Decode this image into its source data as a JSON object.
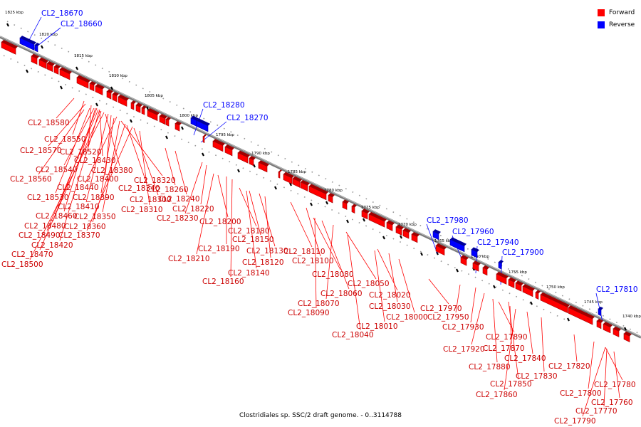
{
  "legend": {
    "forward_label": "Forward",
    "reverse_label": "Reverse",
    "forward_color": "#ff0000",
    "reverse_color": "#0000ff"
  },
  "caption": "Clostridiales sp. SSC/2 draft genome. - 0..3114788",
  "scale_ticks": [
    "1825 kbp",
    "1820 kbp",
    "1815 kbp",
    "1810 kbp",
    "1805 kbp",
    "1800 kbp",
    "1795 kbp",
    "1790 kbp",
    "1785 kbp",
    "1780 kbp",
    "1775 kbp",
    "1770 kbp",
    "1765 kbp",
    "1760 kbp",
    "1755 kbp",
    "1750 kbp",
    "1745 kbp",
    "1740 kbp"
  ],
  "reverse_genes": [
    "CL2_18670",
    "CL2_18660",
    "CL2_18280",
    "CL2_18270",
    "CL2_17980",
    "CL2_17960",
    "CL2_17940",
    "CL2_17900",
    "CL2_17810"
  ],
  "forward_genes": [
    "CL2_18580",
    "CL2_18550",
    "CL2_18570",
    "CL2_18520",
    "CL2_18540",
    "CL2_18430",
    "CL2_18380",
    "CL2_18560",
    "CL2_18400",
    "CL2_18320",
    "CL2_18440",
    "CL2_18340",
    "CL2_18260",
    "CL2_18530",
    "CL2_18390",
    "CL2_18300",
    "CL2_18240",
    "CL2_18410",
    "CL2_18310",
    "CL2_18220",
    "CL2_18460",
    "CL2_18350",
    "CL2_18230",
    "CL2_18480",
    "CL2_18360",
    "CL2_18200",
    "CL2_18490",
    "CL2_18370",
    "CL2_18180",
    "CL2_18420",
    "CL2_18150",
    "CL2_18470",
    "CL2_18190",
    "CL2_18130",
    "CL2_18500",
    "CL2_18110",
    "CL2_18210",
    "CL2_18120",
    "CL2_18100",
    "CL2_18140",
    "CL2_18080",
    "CL2_18160",
    "CL2_18050",
    "CL2_18060",
    "CL2_18020",
    "CL2_18070",
    "CL2_18030",
    "CL2_17970",
    "CL2_18090",
    "CL2_18000",
    "CL2_17950",
    "CL2_18010",
    "CL2_17930",
    "CL2_18040",
    "CL2_17890",
    "CL2_17920",
    "CL2_17870",
    "CL2_17840",
    "CL2_17880",
    "CL2_17820",
    "CL2_17830",
    "CL2_17850",
    "CL2_17780",
    "CL2_17860",
    "CL2_17800",
    "CL2_17760",
    "CL2_17770",
    "CL2_17790"
  ]
}
